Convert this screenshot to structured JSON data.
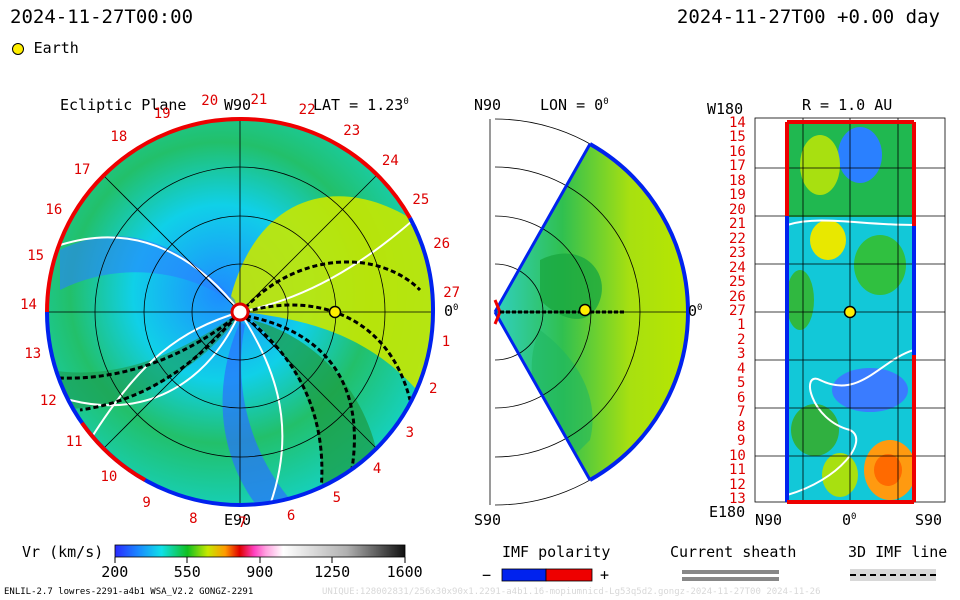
{
  "header": {
    "left_timestamp": "2024-11-27T00:00",
    "right_timestamp": "2024-11-27T00 +0.00 day",
    "legend_earth_label": "Earth"
  },
  "ecliptic_panel": {
    "title": "Ecliptic Plane",
    "top_label": "W90",
    "lat_label": "LAT = 1.23",
    "lat_sup": "0",
    "right_label": "0",
    "right_sup": "0",
    "bottom_label": "E90",
    "rotation_numbers": [
      "1",
      "2",
      "3",
      "4",
      "5",
      "6",
      "7",
      "8",
      "9",
      "10",
      "11",
      "12",
      "13",
      "14",
      "15",
      "16",
      "17",
      "18",
      "19",
      "20",
      "21",
      "22",
      "23",
      "24",
      "25",
      "26",
      "27"
    ]
  },
  "meridional_panel": {
    "top_left_label": "N90",
    "lon_label": "LON = 0",
    "lon_sup": "0",
    "right_label": "0",
    "right_sup": "0",
    "bottom_left_label": "S90"
  },
  "r1au_panel": {
    "top_left_label": "W180",
    "r_label": "R = 1.0 AU",
    "bottom_left_label": "E180",
    "y_labels": [
      "14",
      "15",
      "16",
      "17",
      "18",
      "19",
      "20",
      "21",
      "22",
      "23",
      "24",
      "25",
      "26",
      "27",
      "1",
      "2",
      "3",
      "4",
      "5",
      "6",
      "7",
      "8",
      "9",
      "10",
      "11",
      "12",
      "13"
    ],
    "x_left": "N90",
    "x_mid": "0",
    "x_mid_sup": "0",
    "x_right": "S90"
  },
  "colorbar": {
    "label": "Vr (km/s)",
    "ticks": [
      "200",
      "550",
      "900",
      "1250",
      "1600"
    ]
  },
  "imf_legend": {
    "title": "IMF polarity",
    "minus": "−",
    "plus": "+"
  },
  "sheath_legend": {
    "title": "Current sheath"
  },
  "imf_line_legend": {
    "title": "3D IMF line"
  },
  "footer": {
    "left": "ENLIL-2.7 lowres-2291-a4b1 WSA_V2.2 GONGZ-2291",
    "right": "UNIQUE:128002831/256x30x90x1.2291-a4b1.16-mopiumnicd-Lg53q5d2.gongz-2024-11-27T00   2024-11-26"
  },
  "colors": {
    "ring_red": "#ee0000",
    "ring_blue": "#0022ee",
    "earth": "#ffee00",
    "label_red": "#dd0000"
  },
  "chart_data": {
    "type": "heatmap",
    "title": "Vr (km/s)",
    "quantity": "radial solar wind speed",
    "colorbar_range": [
      200,
      1600
    ],
    "colorbar_ticks": [
      200,
      550,
      900,
      1250,
      1600
    ],
    "earth_lat_deg": 1.23,
    "earth_lon_deg": 0,
    "earth_r_au": 1.0,
    "time_offset_days": 0.0
  }
}
